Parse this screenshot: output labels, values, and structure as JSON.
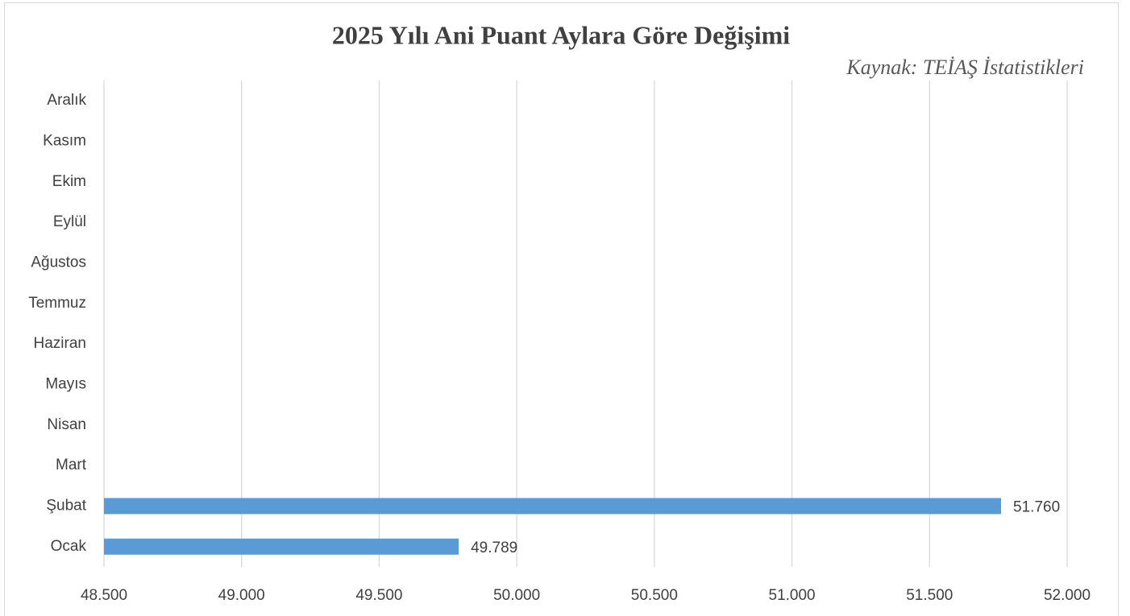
{
  "chart_data": {
    "type": "bar",
    "orientation": "horizontal",
    "title": "2025 Yılı Ani Puant Aylara Göre Değişimi",
    "subtitle": "Kaynak: TEİAŞ İstatistikleri",
    "categories": [
      "Ocak",
      "Şubat",
      "Mart",
      "Nisan",
      "Mayıs",
      "Haziran",
      "Temmuz",
      "Ağustos",
      "Eylül",
      "Ekim",
      "Kasım",
      "Aralık"
    ],
    "values": [
      49789,
      51760,
      null,
      null,
      null,
      null,
      null,
      null,
      null,
      null,
      null,
      null
    ],
    "value_labels": [
      "49.789",
      "51.760",
      null,
      null,
      null,
      null,
      null,
      null,
      null,
      null,
      null,
      null
    ],
    "color": "#5b9bd5",
    "xlim": [
      48500,
      52000
    ],
    "xticks": [
      {
        "value": 48500,
        "label": "48.500"
      },
      {
        "value": 49000,
        "label": "49.000"
      },
      {
        "value": 49500,
        "label": "49.500"
      },
      {
        "value": 50000,
        "label": "50.000"
      },
      {
        "value": 50500,
        "label": "50.500"
      },
      {
        "value": 51000,
        "label": "51.000"
      },
      {
        "value": 51500,
        "label": "51.500"
      },
      {
        "value": 52000,
        "label": "52.000"
      }
    ],
    "grid": true
  }
}
